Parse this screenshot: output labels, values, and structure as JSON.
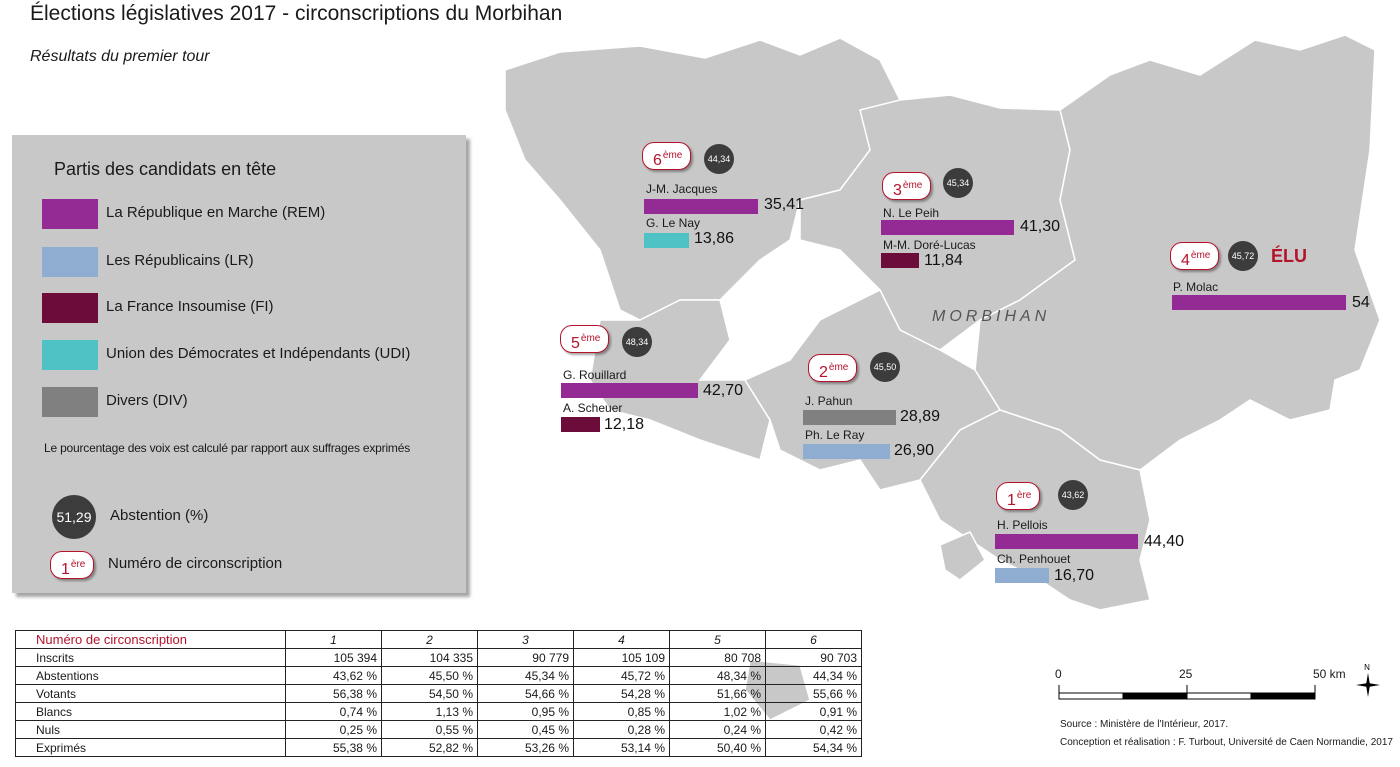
{
  "title": "Élections législatives 2017 - circonscriptions du Morbihan",
  "subtitle": "Résultats du premier tour",
  "department_label": "MORBIHAN",
  "elected_label": "ÉLU",
  "legend": {
    "title": "Partis des candidats en tête",
    "parties": [
      {
        "label": "La République en Marche (REM)",
        "color": "#942b95"
      },
      {
        "label": "Les Républicains (LR)",
        "color": "#8fadd1"
      },
      {
        "label": "La France Insoumise (FI)",
        "color": "#6b0c3a"
      },
      {
        "label": "Union des Démocrates et Indépendants (UDI)",
        "color": "#4fc2c6"
      },
      {
        "label": "Divers (DIV)",
        "color": "#808080"
      }
    ],
    "note": "Le pourcentage des voix est calculé par rapport aux suffrages exprimés",
    "abstention_example": "51,29",
    "abstention_label": "Abstention (%)",
    "badge_example_num": "1",
    "badge_example_sup": "ère",
    "badge_label": "Numéro de circonscription"
  },
  "districts": [
    {
      "num": "1",
      "sup": "ère",
      "abstention": "43,62",
      "candidates": [
        {
          "name": "H. Pellois",
          "value": "44,40",
          "pct": 44.4,
          "party": "REM"
        },
        {
          "name": "Ch. Penhouet",
          "value": "16,70",
          "pct": 16.7,
          "party": "LR"
        }
      ]
    },
    {
      "num": "2",
      "sup": "ème",
      "abstention": "45,50",
      "candidates": [
        {
          "name": "J. Pahun",
          "value": "28,89",
          "pct": 28.89,
          "party": "DIV"
        },
        {
          "name": "Ph. Le Ray",
          "value": "26,90",
          "pct": 26.9,
          "party": "LR"
        }
      ]
    },
    {
      "num": "3",
      "sup": "ème",
      "abstention": "45,34",
      "candidates": [
        {
          "name": "N. Le Peih",
          "value": "41,30",
          "pct": 41.3,
          "party": "REM"
        },
        {
          "name": "M-M. Doré-Lucas",
          "value": "11,84",
          "pct": 11.84,
          "party": "FI"
        }
      ]
    },
    {
      "num": "4",
      "sup": "ème",
      "abstention": "45,72",
      "candidates": [
        {
          "name": "P. Molac",
          "value": "54",
          "pct": 54,
          "party": "REM"
        }
      ]
    },
    {
      "num": "5",
      "sup": "ème",
      "abstention": "48,34",
      "candidates": [
        {
          "name": "G. Rouillard",
          "value": "42,70",
          "pct": 42.7,
          "party": "REM"
        },
        {
          "name": "A. Scheuer",
          "value": "12,18",
          "pct": 12.18,
          "party": "FI"
        }
      ]
    },
    {
      "num": "6",
      "sup": "ème",
      "abstention": "44,34",
      "candidates": [
        {
          "name": "J-M. Jacques",
          "value": "35,41",
          "pct": 35.41,
          "party": "REM"
        },
        {
          "name": "G. Le Nay",
          "value": "13,86",
          "pct": 13.86,
          "party": "UDI"
        }
      ]
    }
  ],
  "table": {
    "header_label": "Numéro de circonscription",
    "columns": [
      "1",
      "2",
      "3",
      "4",
      "5",
      "6"
    ],
    "rows": [
      {
        "label": "Inscrits",
        "values": [
          "105 394",
          "104 335",
          "90 779",
          "105 109",
          "80 708",
          "90 703"
        ]
      },
      {
        "label": "Abstentions",
        "values": [
          "43,62 %",
          "45,50 %",
          "45,34 %",
          "45,72 %",
          "48,34 %",
          "44,34 %"
        ]
      },
      {
        "label": "Votants",
        "values": [
          "56,38 %",
          "54,50 %",
          "54,66 %",
          "54,28 %",
          "51,66 %",
          "55,66 %"
        ]
      },
      {
        "label": "Blancs",
        "values": [
          "0,74 %",
          "1,13 %",
          "0,95 %",
          "0,85 %",
          "1,02 %",
          "0,91 %"
        ]
      },
      {
        "label": "Nuls",
        "values": [
          "0,25 %",
          "0,55 %",
          "0,45 %",
          "0,28 %",
          "0,24 %",
          "0,42 %"
        ]
      },
      {
        "label": "Exprimés",
        "values": [
          "55,38 %",
          "52,82 %",
          "53,26 %",
          "53,14 %",
          "50,40 %",
          "54,34 %"
        ]
      }
    ]
  },
  "scale": {
    "labels": [
      "0",
      "25",
      "50 km"
    ],
    "north": "N"
  },
  "source": "Source : Ministère de l'Intérieur, 2017.",
  "credit": "Conception et réalisation : F. Turbout, Université de Caen Normandie, 2017"
}
